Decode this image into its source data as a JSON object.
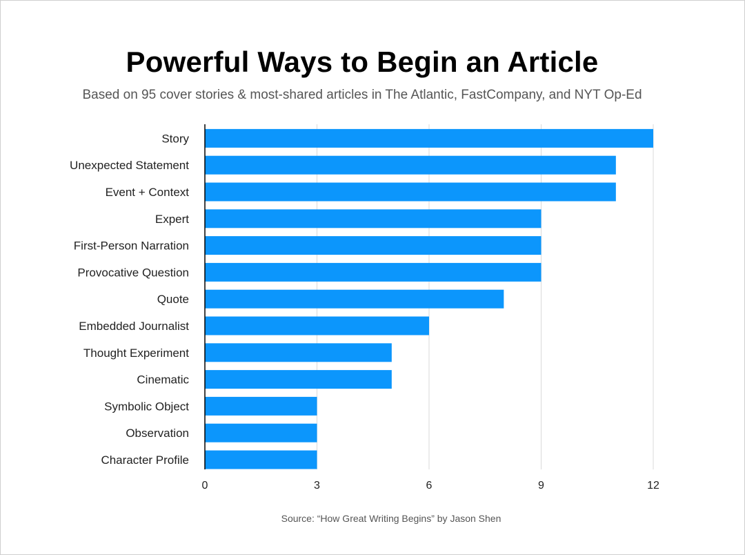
{
  "header": {
    "title": "Powerful Ways to Begin an Article",
    "subtitle": "Based on 95 cover stories & most-shared articles in The Atlantic, FastCompany, and NYT Op-Ed"
  },
  "footer": {
    "source": "Source: “How Great Writing Begins” by Jason Shen"
  },
  "colors": {
    "bar": "#0c96fc",
    "grid": "#d9d9d9",
    "axis": "#000000"
  },
  "chart_data": {
    "type": "bar",
    "orientation": "horizontal",
    "title": "Powerful Ways to Begin an Article",
    "subtitle": "Based on 95 cover stories & most-shared articles in The Atlantic, FastCompany, and NYT Op-Ed",
    "xlabel": "",
    "ylabel": "",
    "categories": [
      "Story",
      "Unexpected Statement",
      "Event + Context",
      "Expert",
      "First-Person Narration",
      "Provocative Question",
      "Quote",
      "Embedded Journalist",
      "Thought Experiment",
      "Cinematic",
      "Symbolic Object",
      "Observation",
      "Character Profile"
    ],
    "values": [
      12,
      11,
      11,
      9,
      9,
      9,
      8,
      6,
      5,
      5,
      3,
      3,
      3
    ],
    "xlim": [
      0,
      12
    ],
    "xticks": [
      0,
      3,
      6,
      9,
      12
    ],
    "grid": true,
    "legend": "none"
  }
}
